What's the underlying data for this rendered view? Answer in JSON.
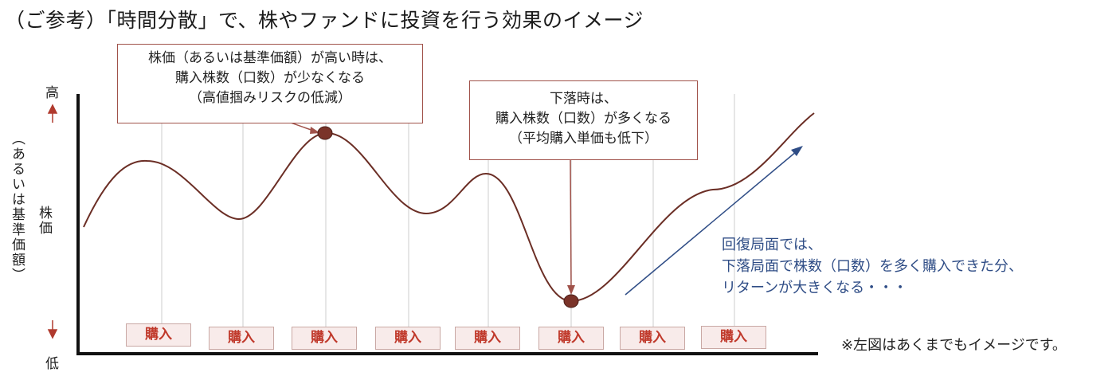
{
  "title": "（ご参考）「時間分散」で、株やファンドに投資を行う効果のイメージ",
  "y_axis": {
    "high": "高",
    "low": "低",
    "label": "株価",
    "sublabel": "（あるいは基準価額）"
  },
  "callouts": {
    "high_price": {
      "line1": "株価（あるいは基準価額）が高い時は、",
      "line2": "購入株数（口数）が少なくなる",
      "line3": "（高値掴みリスクの低減）"
    },
    "low_price": {
      "line1": "下落時は、",
      "line2": "購入株数（口数）が多くなる",
      "line3": "（平均購入単価も低下）"
    }
  },
  "recovery_text": {
    "line1": "回復局面では、",
    "line2": "下落局面で株数（口数）を多く購入できた分、",
    "line3": "リターンが大きくなる・・・"
  },
  "buy_labels": [
    "購入",
    "購入",
    "購入",
    "購入",
    "購入",
    "購入",
    "購入",
    "購入"
  ],
  "note": "※左図はあくまでもイメージです。",
  "colors": {
    "curve": "#6b2e25",
    "marker": "#7a3329",
    "arrow": "#2f4d86",
    "buy_text": "#c0392b"
  }
}
